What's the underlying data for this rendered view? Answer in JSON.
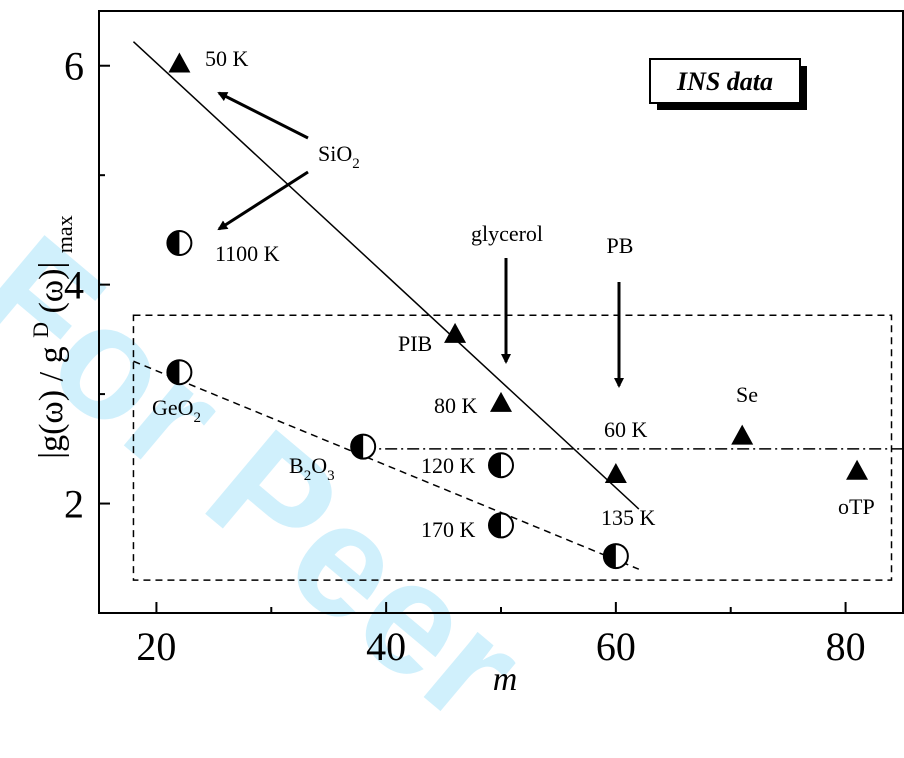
{
  "watermark": "For Peer",
  "legend_box": "INS data",
  "chart_data": {
    "type": "scatter",
    "xlabel": "m",
    "ylabel": "|g(ω) / g",
    "ylabel_sup": "D",
    "ylabel_close": "(ω)|",
    "ylabel_sub": "max",
    "xlim": [
      15,
      85
    ],
    "ylim": [
      1.0,
      6.5
    ],
    "xticks": [
      20,
      40,
      60,
      80
    ],
    "yticks": [
      2,
      4,
      6
    ],
    "series": [
      {
        "marker": "triangle",
        "points": [
          {
            "x": 22,
            "y": 6.02,
            "label": "50 K"
          },
          {
            "x": 46,
            "y": 3.55,
            "label": "PIB"
          },
          {
            "x": 50,
            "y": 2.92,
            "label": "80 K"
          },
          {
            "x": 60,
            "y": 2.27,
            "label": "60 K"
          },
          {
            "x": 71,
            "y": 2.62,
            "label": "Se"
          },
          {
            "x": 81,
            "y": 2.3,
            "label": "oTP"
          }
        ]
      },
      {
        "marker": "half-filled-circle",
        "points": [
          {
            "x": 22,
            "y": 4.38,
            "label": "1100 K"
          },
          {
            "x": 22,
            "y": 3.2,
            "label": "GeO2"
          },
          {
            "x": 38,
            "y": 2.52,
            "label": "B2O3"
          },
          {
            "x": 50,
            "y": 2.35,
            "label": "120 K"
          },
          {
            "x": 50,
            "y": 1.8,
            "label": "170 K"
          },
          {
            "x": 60,
            "y": 1.52,
            "label": "135 K"
          }
        ]
      }
    ],
    "lines": {
      "solid": {
        "x1": 18,
        "y1": 6.22,
        "x2": 62,
        "y2": 1.95
      },
      "dashed": {
        "x1": 18,
        "y1": 3.3,
        "x2": 62,
        "y2": 1.4
      },
      "dashdot": {
        "x1": 38,
        "y1": 2.5,
        "x2": 85,
        "y2": 2.5
      },
      "dashed_box": {
        "x1": 18,
        "y1": 1.3,
        "x2": 84,
        "y2": 3.72
      }
    },
    "annotations": {
      "sio2": {
        "text": "SiO",
        "sub": "2",
        "x": 31.5,
        "y": 5.15
      },
      "glycerol": {
        "text": "glycerol",
        "x": 50,
        "y": 4.6
      },
      "pb": {
        "text": "PB",
        "x": 60,
        "y": 4.3
      }
    }
  }
}
